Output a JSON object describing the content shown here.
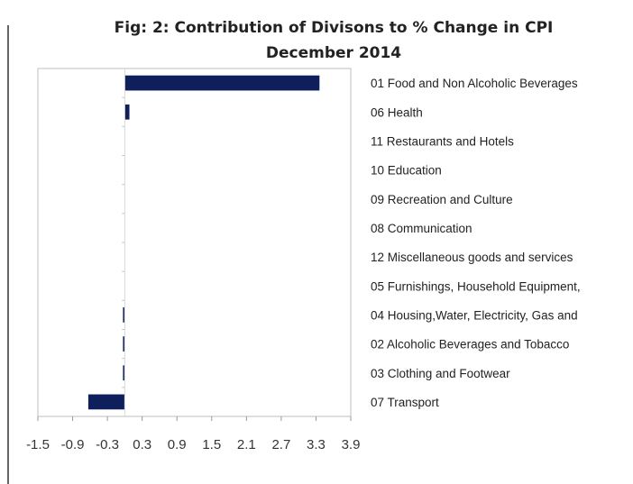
{
  "chart_data": {
    "type": "bar",
    "orientation": "horizontal",
    "title": "Fig: 2: Contribution of Divisons to % Change in CPI",
    "subtitle": "December 2014",
    "xlim": [
      -1.5,
      3.9
    ],
    "xticks": [
      "-1.5",
      "-0.9",
      "-0.3",
      "0.3",
      "0.9",
      "1.5",
      "2.1",
      "2.7",
      "3.3",
      "3.9"
    ],
    "categories": [
      "01 Food and Non Alcoholic Beverages",
      "06 Health",
      "11 Restaurants and Hotels",
      "10 Education",
      "09 Recreation and Culture",
      "08 Communication",
      "12 Miscellaneous goods and services",
      "05 Furnishings, Household Equipment,",
      "04 Housing,Water, Electricity, Gas and",
      "02 Alcoholic Beverages and Tobacco",
      "03 Clothing and Footwear",
      "07 Transport"
    ],
    "values": [
      3.36,
      0.08,
      0.0,
      0.0,
      0.0,
      0.0,
      0.0,
      0.0,
      -0.01,
      -0.02,
      -0.02,
      -0.63
    ],
    "bar_color": "#0f1f5c",
    "grid": false,
    "legend": "none"
  }
}
